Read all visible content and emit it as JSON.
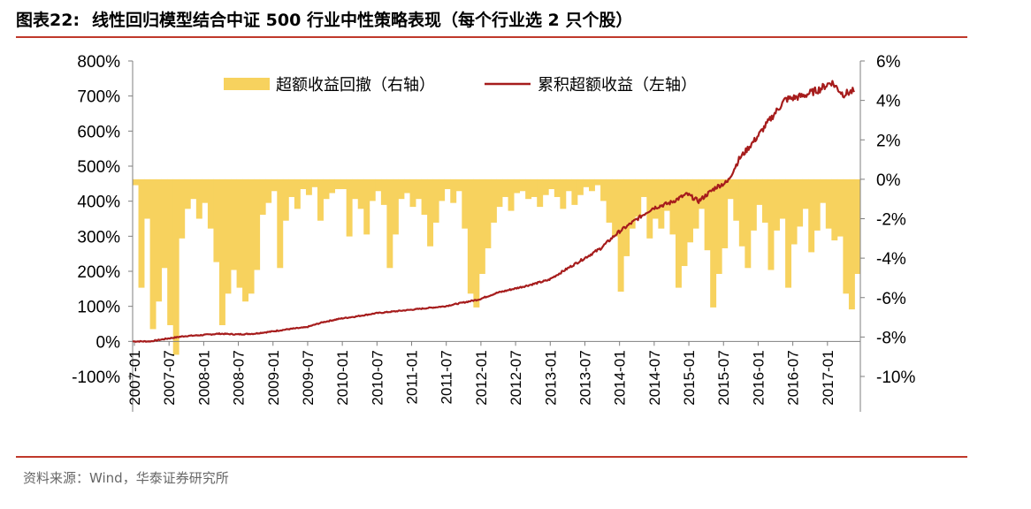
{
  "header": {
    "figure_label": "图表22:",
    "title": "线性回归模型结合中证 500 行业中性策略表现（每个行业选 2 只个股）"
  },
  "footer": {
    "source": "资料来源：Wind，华泰证券研究所"
  },
  "colors": {
    "accent_rule": "#c0392b",
    "line": "#a61c1c",
    "bar": "#f7d25e",
    "axis": "#7f7f7f"
  },
  "chart_data": {
    "type": "bar+line",
    "legend": {
      "placement": "top-center",
      "entries": [
        "超额收益回撤（右轴）",
        "累积超额收益（左轴）"
      ]
    },
    "left_axis": {
      "min": -100,
      "max": 800,
      "ticks": [
        "-100%",
        "0%",
        "100%",
        "200%",
        "300%",
        "400%",
        "500%",
        "600%",
        "700%",
        "800%"
      ]
    },
    "right_axis": {
      "min": -10,
      "max": 6,
      "ticks": [
        "-10%",
        "-8%",
        "-6%",
        "-4%",
        "-2%",
        "0%",
        "2%",
        "4%",
        "6%"
      ]
    },
    "x_axis": {
      "start": "2007-01",
      "end": "2017-06",
      "tick_labels": [
        "2007-01",
        "2007-07",
        "2008-01",
        "2008-07",
        "2009-01",
        "2009-07",
        "2010-01",
        "2010-07",
        "2011-01",
        "2011-07",
        "2012-01",
        "2012-07",
        "2013-01",
        "2013-07",
        "2014-01",
        "2014-07",
        "2015-01",
        "2015-07",
        "2016-01",
        "2016-07",
        "2017-01"
      ]
    },
    "series": [
      {
        "name": "累积超额收益（左轴）",
        "axis": "left",
        "kind": "line",
        "points": [
          [
            "2007-01",
            0
          ],
          [
            "2007-04",
            0
          ],
          [
            "2007-07",
            8
          ],
          [
            "2007-10",
            15
          ],
          [
            "2008-01",
            18
          ],
          [
            "2008-04",
            22
          ],
          [
            "2008-07",
            20
          ],
          [
            "2008-10",
            22
          ],
          [
            "2009-01",
            28
          ],
          [
            "2009-04",
            35
          ],
          [
            "2009-07",
            40
          ],
          [
            "2009-10",
            55
          ],
          [
            "2010-01",
            65
          ],
          [
            "2010-04",
            72
          ],
          [
            "2010-07",
            80
          ],
          [
            "2010-10",
            85
          ],
          [
            "2011-01",
            90
          ],
          [
            "2011-04",
            95
          ],
          [
            "2011-07",
            100
          ],
          [
            "2011-10",
            110
          ],
          [
            "2012-01",
            120
          ],
          [
            "2012-04",
            138
          ],
          [
            "2012-07",
            150
          ],
          [
            "2012-10",
            162
          ],
          [
            "2013-01",
            175
          ],
          [
            "2013-04",
            205
          ],
          [
            "2013-07",
            235
          ],
          [
            "2013-10",
            265
          ],
          [
            "2014-01",
            310
          ],
          [
            "2014-04",
            345
          ],
          [
            "2014-07",
            380
          ],
          [
            "2014-10",
            395
          ],
          [
            "2015-01",
            420
          ],
          [
            "2015-03",
            400
          ],
          [
            "2015-06",
            440
          ],
          [
            "2015-08",
            455
          ],
          [
            "2015-10",
            520
          ],
          [
            "2016-01",
            580
          ],
          [
            "2016-03",
            625
          ],
          [
            "2016-06",
            690
          ],
          [
            "2016-09",
            700
          ],
          [
            "2016-12",
            720
          ],
          [
            "2017-02",
            740
          ],
          [
            "2017-04",
            705
          ],
          [
            "2017-06",
            715
          ]
        ]
      },
      {
        "name": "超额收益回撤（右轴）",
        "axis": "right",
        "kind": "bar",
        "points": [
          [
            "2007-01",
            -0.3
          ],
          [
            "2007-02",
            -5.5
          ],
          [
            "2007-03",
            -2.0
          ],
          [
            "2007-04",
            -7.6
          ],
          [
            "2007-05",
            -6.2
          ],
          [
            "2007-06",
            -4.5
          ],
          [
            "2007-07",
            -7.4
          ],
          [
            "2007-08",
            -8.9
          ],
          [
            "2007-09",
            -3.0
          ],
          [
            "2007-10",
            -1.5
          ],
          [
            "2007-11",
            -1.0
          ],
          [
            "2007-12",
            -2.0
          ],
          [
            "2008-01",
            -1.2
          ],
          [
            "2008-02",
            -2.5
          ],
          [
            "2008-03",
            -4.2
          ],
          [
            "2008-04",
            -7.4
          ],
          [
            "2008-05",
            -5.8
          ],
          [
            "2008-06",
            -4.6
          ],
          [
            "2008-07",
            -5.5
          ],
          [
            "2008-08",
            -6.2
          ],
          [
            "2008-09",
            -5.8
          ],
          [
            "2008-10",
            -4.6
          ],
          [
            "2008-11",
            -1.8
          ],
          [
            "2008-12",
            -1.2
          ],
          [
            "2009-01",
            -0.6
          ],
          [
            "2009-02",
            -4.5
          ],
          [
            "2009-03",
            -2.1
          ],
          [
            "2009-04",
            -0.9
          ],
          [
            "2009-05",
            -1.5
          ],
          [
            "2009-06",
            -0.5
          ],
          [
            "2009-07",
            -0.8
          ],
          [
            "2009-08",
            -0.4
          ],
          [
            "2009-09",
            -2.1
          ],
          [
            "2009-10",
            -1.0
          ],
          [
            "2009-11",
            -0.7
          ],
          [
            "2009-12",
            -0.5
          ],
          [
            "2010-01",
            -0.5
          ],
          [
            "2010-02",
            -2.9
          ],
          [
            "2010-03",
            -1.0
          ],
          [
            "2010-04",
            -1.5
          ],
          [
            "2010-05",
            -2.8
          ],
          [
            "2010-06",
            -1.1
          ],
          [
            "2010-07",
            -0.6
          ],
          [
            "2010-08",
            -1.3
          ],
          [
            "2010-09",
            -4.5
          ],
          [
            "2010-10",
            -2.8
          ],
          [
            "2010-11",
            -1.0
          ],
          [
            "2010-12",
            -0.7
          ],
          [
            "2011-01",
            -1.4
          ],
          [
            "2011-02",
            -1.0
          ],
          [
            "2011-03",
            -1.8
          ],
          [
            "2011-04",
            -3.4
          ],
          [
            "2011-05",
            -2.2
          ],
          [
            "2011-06",
            -1.1
          ],
          [
            "2011-07",
            -0.5
          ],
          [
            "2011-08",
            -1.2
          ],
          [
            "2011-09",
            -0.6
          ],
          [
            "2011-10",
            -2.5
          ],
          [
            "2011-11",
            -5.8
          ],
          [
            "2011-12",
            -6.5
          ],
          [
            "2012-01",
            -4.8
          ],
          [
            "2012-02",
            -3.5
          ],
          [
            "2012-03",
            -2.2
          ],
          [
            "2012-04",
            -1.4
          ],
          [
            "2012-05",
            -0.9
          ],
          [
            "2012-06",
            -1.6
          ],
          [
            "2012-07",
            -0.7
          ],
          [
            "2012-08",
            -0.6
          ],
          [
            "2012-09",
            -1.0
          ],
          [
            "2012-10",
            -0.9
          ],
          [
            "2012-11",
            -1.4
          ],
          [
            "2012-12",
            -0.8
          ],
          [
            "2013-01",
            -0.5
          ],
          [
            "2013-02",
            -0.9
          ],
          [
            "2013-03",
            -1.5
          ],
          [
            "2013-04",
            -0.6
          ],
          [
            "2013-05",
            -1.3
          ],
          [
            "2013-06",
            -0.8
          ],
          [
            "2013-07",
            -0.4
          ],
          [
            "2013-08",
            -0.6
          ],
          [
            "2013-09",
            -0.3
          ],
          [
            "2013-10",
            -1.1
          ],
          [
            "2013-11",
            -2.2
          ],
          [
            "2013-12",
            -2.9
          ],
          [
            "2014-01",
            -5.7
          ],
          [
            "2014-02",
            -3.9
          ],
          [
            "2014-03",
            -2.5
          ],
          [
            "2014-04",
            -1.9
          ],
          [
            "2014-05",
            -0.9
          ],
          [
            "2014-06",
            -3.0
          ],
          [
            "2014-07",
            -2.0
          ],
          [
            "2014-08",
            -2.5
          ],
          [
            "2014-09",
            -1.6
          ],
          [
            "2014-10",
            -2.8
          ],
          [
            "2014-11",
            -5.5
          ],
          [
            "2014-12",
            -4.4
          ],
          [
            "2015-01",
            -3.2
          ],
          [
            "2015-02",
            -2.5
          ],
          [
            "2015-03",
            -1.5
          ],
          [
            "2015-04",
            -3.6
          ],
          [
            "2015-05",
            -6.5
          ],
          [
            "2015-06",
            -4.8
          ],
          [
            "2015-07",
            -3.5
          ],
          [
            "2015-08",
            -1.0
          ],
          [
            "2015-09",
            -2.1
          ],
          [
            "2015-10",
            -3.4
          ],
          [
            "2015-11",
            -4.5
          ],
          [
            "2015-12",
            -2.6
          ],
          [
            "2016-01",
            -1.3
          ],
          [
            "2016-02",
            -2.2
          ],
          [
            "2016-03",
            -4.6
          ],
          [
            "2016-04",
            -2.6
          ],
          [
            "2016-05",
            -2.0
          ],
          [
            "2016-06",
            -5.5
          ],
          [
            "2016-07",
            -3.3
          ],
          [
            "2016-08",
            -2.4
          ],
          [
            "2016-09",
            -1.5
          ],
          [
            "2016-10",
            -3.7
          ],
          [
            "2016-11",
            -2.6
          ],
          [
            "2016-12",
            -1.2
          ],
          [
            "2017-01",
            -2.5
          ],
          [
            "2017-02",
            -3.1
          ],
          [
            "2017-03",
            -2.9
          ],
          [
            "2017-04",
            -5.8
          ],
          [
            "2017-05",
            -6.6
          ],
          [
            "2017-06",
            -4.8
          ]
        ]
      }
    ]
  }
}
